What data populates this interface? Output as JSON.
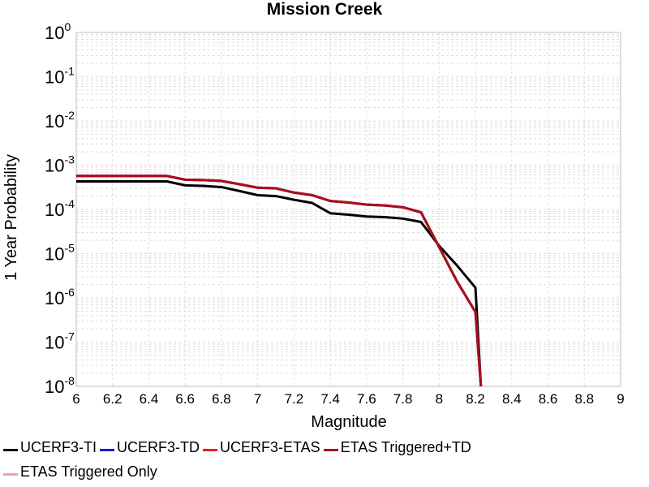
{
  "chart_data": {
    "type": "line",
    "title": "Mission Creek",
    "xlabel": "Magnitude",
    "ylabel": "1 Year Probability",
    "xlim": [
      6,
      9
    ],
    "ylim": [
      1e-08,
      1
    ],
    "yscale": "log",
    "grid": true,
    "legend_position": "bottom",
    "x_ticks": [
      "6",
      "6.2",
      "6.4",
      "6.6",
      "6.8",
      "7",
      "7.2",
      "7.4",
      "7.6",
      "7.8",
      "8",
      "8.2",
      "8.4",
      "8.6",
      "8.8",
      "9"
    ],
    "y_tick_exponents": [
      "0",
      "-1",
      "-2",
      "-3",
      "-4",
      "-5",
      "-6",
      "-7",
      "-8"
    ],
    "y_tick_base": "10",
    "series": [
      {
        "name": "UCERF3-TI",
        "color": "#000000",
        "x": [
          6.0,
          6.1,
          6.2,
          6.3,
          6.4,
          6.5,
          6.6,
          6.7,
          6.8,
          6.9,
          7.0,
          7.1,
          7.2,
          7.3,
          7.4,
          7.5,
          7.6,
          7.7,
          7.8,
          7.9,
          8.0,
          8.1,
          8.2,
          8.23
        ],
        "y": [
          0.00043,
          0.00043,
          0.00043,
          0.00043,
          0.00043,
          0.00043,
          0.00035,
          0.00034,
          0.00032,
          0.00026,
          0.00021,
          0.0002,
          0.000165,
          0.00014,
          8.2e-05,
          7.6e-05,
          6.9e-05,
          6.7e-05,
          6.2e-05,
          5.2e-05,
          1.5e-05,
          5.3e-06,
          1.7e-06,
          1e-08
        ]
      },
      {
        "name": "UCERF3-TD",
        "color": "#1a1ad6",
        "x": [
          6.0,
          6.1,
          6.2,
          6.3,
          6.4,
          6.5,
          6.6,
          6.7,
          6.8,
          6.9,
          7.0,
          7.1,
          7.2,
          7.3,
          7.4,
          7.5,
          7.6,
          7.7,
          7.8,
          7.9,
          8.0,
          8.1,
          8.2,
          8.23
        ],
        "y": [
          0.00057,
          0.00057,
          0.00057,
          0.00057,
          0.00057,
          0.00057,
          0.00047,
          0.00046,
          0.00044,
          0.00037,
          0.00031,
          0.0003,
          0.00024,
          0.00021,
          0.000155,
          0.000143,
          0.000128,
          0.000123,
          0.000112,
          8.6e-05,
          1.4e-05,
          2.3e-06,
          4.8e-07,
          1e-08
        ]
      },
      {
        "name": "UCERF3-ETAS",
        "color": "#e8201a",
        "x": [
          6.0,
          6.1,
          6.2,
          6.3,
          6.4,
          6.5,
          6.6,
          6.7,
          6.8,
          6.9,
          7.0,
          7.1,
          7.2,
          7.3,
          7.4,
          7.5,
          7.6,
          7.7,
          7.8,
          7.9,
          8.0,
          8.1,
          8.2,
          8.23
        ],
        "y": [
          0.00057,
          0.00057,
          0.00057,
          0.00057,
          0.00057,
          0.00057,
          0.00047,
          0.00046,
          0.00044,
          0.00037,
          0.00031,
          0.0003,
          0.00024,
          0.00021,
          0.000155,
          0.000143,
          0.000128,
          0.000123,
          0.000112,
          8.6e-05,
          1.4e-05,
          2.3e-06,
          4.8e-07,
          1e-08
        ]
      },
      {
        "name": "ETAS Triggered+TD",
        "color": "#a6101c",
        "x": [
          6.0,
          6.1,
          6.2,
          6.3,
          6.4,
          6.5,
          6.6,
          6.7,
          6.8,
          6.9,
          7.0,
          7.1,
          7.2,
          7.3,
          7.4,
          7.5,
          7.6,
          7.7,
          7.8,
          7.9,
          8.0,
          8.1,
          8.2,
          8.23
        ],
        "y": [
          0.00057,
          0.00057,
          0.00057,
          0.00057,
          0.00057,
          0.00057,
          0.00047,
          0.00046,
          0.00044,
          0.00037,
          0.00031,
          0.0003,
          0.00024,
          0.00021,
          0.000155,
          0.000143,
          0.000128,
          0.000123,
          0.000112,
          8.6e-05,
          1.4e-05,
          2.3e-06,
          4.8e-07,
          1e-08
        ]
      },
      {
        "name": "ETAS Triggered Only",
        "color": "#f0a0a8",
        "x": [],
        "y": []
      }
    ]
  }
}
